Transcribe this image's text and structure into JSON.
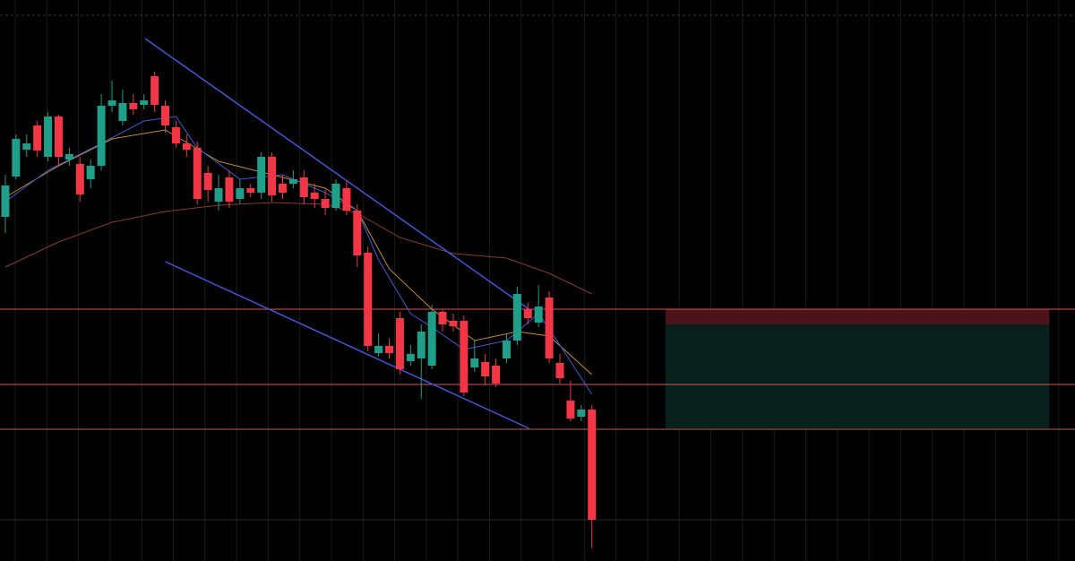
{
  "chart_data": {
    "type": "candlestick",
    "xlim": [
      -0.5,
      100.3
    ],
    "ylim": [
      0,
      626
    ],
    "up_color": "#1f9e89",
    "down_color": "#f23645",
    "candles": {
      "open": [
        384,
        429,
        459,
        486,
        451,
        496,
        448,
        443,
        426,
        441,
        508,
        491,
        511,
        509,
        541,
        508,
        484,
        466,
        461,
        433,
        401,
        428,
        404,
        416,
        411,
        451,
        421,
        421,
        428,
        411,
        404,
        394,
        416,
        391,
        344,
        232,
        240,
        271,
        223,
        226,
        218,
        278,
        268,
        268,
        216,
        222,
        218,
        226,
        246,
        281,
        266,
        294,
        221,
        179,
        161,
        169
      ],
      "high": [
        431,
        476,
        476,
        491,
        501,
        498,
        461,
        451,
        448,
        521,
        536,
        526,
        521,
        521,
        546,
        514,
        491,
        476,
        468,
        441,
        431,
        436,
        426,
        421,
        456,
        456,
        431,
        436,
        436,
        421,
        414,
        426,
        424,
        398,
        351,
        254,
        248,
        278,
        241,
        264,
        286,
        281,
        276,
        274,
        246,
        231,
        226,
        254,
        306,
        288,
        308,
        301,
        231,
        201,
        174,
        174
      ],
      "low": [
        366,
        426,
        451,
        451,
        446,
        441,
        441,
        401,
        416,
        436,
        501,
        486,
        498,
        504,
        501,
        478,
        461,
        451,
        398,
        401,
        391,
        394,
        398,
        406,
        404,
        401,
        404,
        416,
        398,
        394,
        386,
        391,
        386,
        328,
        234,
        228,
        226,
        208,
        218,
        181,
        214,
        256,
        256,
        184,
        211,
        196,
        194,
        221,
        241,
        264,
        261,
        221,
        198,
        156,
        156,
        14
      ],
      "close": [
        419,
        471,
        466,
        458,
        496,
        451,
        454,
        409,
        441,
        508,
        514,
        511,
        504,
        514,
        509,
        486,
        466,
        459,
        404,
        414,
        416,
        401,
        416,
        411,
        451,
        408,
        411,
        426,
        406,
        404,
        394,
        421,
        391,
        341,
        240,
        240,
        232,
        214,
        231,
        256,
        278,
        264,
        262,
        188,
        226,
        206,
        198,
        246,
        298,
        271,
        284,
        226,
        204,
        159,
        169,
        46
      ]
    },
    "lines": [
      {
        "color": "#8a3a2a",
        "x": [
          0,
          5,
          10,
          15,
          20,
          25,
          30,
          33,
          37,
          42,
          47,
          51,
          55
        ],
        "values": [
          328,
          356,
          378,
          390,
          397,
          400,
          398,
          388,
          361,
          343,
          338,
          321,
          298
        ]
      },
      {
        "color": "#c98a2a",
        "x": [
          0,
          5,
          10,
          15,
          20,
          25,
          30,
          33,
          36,
          40,
          44,
          48,
          51,
          55
        ],
        "values": [
          406,
          441,
          471,
          481,
          446,
          431,
          416,
          391,
          326,
          281,
          246,
          256,
          251,
          208
        ]
      },
      {
        "color": "#3c5bd6",
        "x": [
          0,
          4,
          9,
          13,
          16,
          18,
          22,
          26,
          30,
          33,
          35,
          38,
          40,
          43,
          47,
          50,
          52,
          55
        ],
        "values": [
          401,
          436,
          466,
          491,
          496,
          461,
          426,
          431,
          411,
          391,
          336,
          276,
          261,
          236,
          246,
          276,
          241,
          186
        ]
      }
    ],
    "trend_lines": [
      {
        "color": "#3f56e0",
        "x": [
          13.1,
          49.1
        ],
        "values": [
          583,
          281
        ]
      },
      {
        "color": "#3f56e0",
        "x": [
          15,
          49.1
        ],
        "values": [
          334,
          148
        ]
      }
    ],
    "levels": {
      "color": "#d9534f",
      "values": [
        281,
        197,
        147
      ]
    },
    "position": {
      "x": [
        61.9,
        97.9
      ],
      "stop": 281,
      "entry": 264,
      "target": 148
    }
  }
}
